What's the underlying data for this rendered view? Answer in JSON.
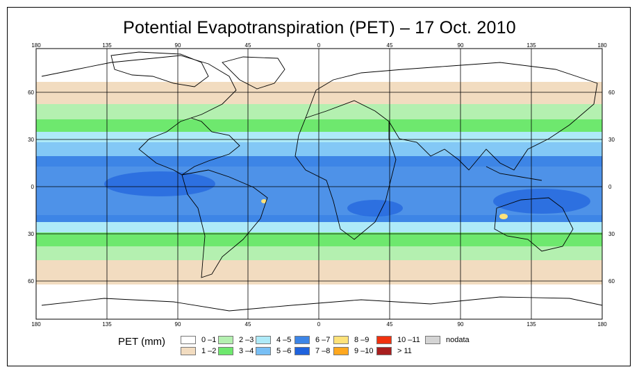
{
  "title": "Potential Evapotranspiration (PET) – 17 Oct. 2010",
  "axes": {
    "lon_ticks": [
      "180",
      "135",
      "90",
      "45",
      "0",
      "45",
      "90",
      "135",
      "180"
    ],
    "lat_ticks": [
      "60",
      "30",
      "0",
      "30",
      "60"
    ]
  },
  "legend": {
    "title": "PET (mm)",
    "items": [
      {
        "label": "0 –1",
        "color": "#ffffff"
      },
      {
        "label": "1 –2",
        "color": "#f2dcc0"
      },
      {
        "label": "2 –3",
        "color": "#b4f0b0"
      },
      {
        "label": "3 –4",
        "color": "#6ee86e"
      },
      {
        "label": "4 –5",
        "color": "#aeeaf8"
      },
      {
        "label": "5 –6",
        "color": "#78bff5"
      },
      {
        "label": "6 –7",
        "color": "#3d85e6"
      },
      {
        "label": "7 –8",
        "color": "#1f63dd"
      },
      {
        "label": "8 –9",
        "color": "#fde27a"
      },
      {
        "label": "9 –10",
        "color": "#ffa81f"
      },
      {
        "label": "10 –11",
        "color": "#f0320f"
      },
      {
        "label": "> 11",
        "color": "#a81e1e"
      },
      {
        "label": "nodata",
        "color": "#d4d4d4"
      }
    ]
  }
}
